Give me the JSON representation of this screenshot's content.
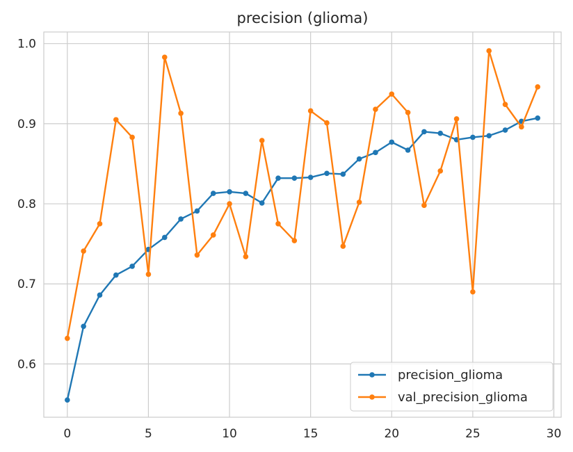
{
  "chart_data": {
    "type": "line",
    "title": "precision (glioma)",
    "xlabel": "",
    "ylabel": "",
    "xlim": [
      -1.45,
      30.45
    ],
    "ylim": [
      0.5335,
      1.0145
    ],
    "xticks": [
      0,
      5,
      10,
      15,
      20,
      25,
      30
    ],
    "yticks": [
      0.6,
      0.7,
      0.8,
      0.9,
      1.0
    ],
    "ytick_labels": [
      "0.6",
      "0.7",
      "0.8",
      "0.9",
      "1.0"
    ],
    "grid": true,
    "legend_position": "lower-right",
    "x": [
      0,
      1,
      2,
      3,
      4,
      5,
      6,
      7,
      8,
      9,
      10,
      11,
      12,
      13,
      14,
      15,
      16,
      17,
      18,
      19,
      20,
      21,
      22,
      23,
      24,
      25,
      26,
      27,
      28,
      29
    ],
    "series": [
      {
        "name": "precision_glioma",
        "color": "#1f77b4",
        "values": [
          0.555,
          0.647,
          0.686,
          0.711,
          0.722,
          0.743,
          0.758,
          0.781,
          0.791,
          0.813,
          0.815,
          0.813,
          0.801,
          0.832,
          0.832,
          0.833,
          0.838,
          0.837,
          0.856,
          0.864,
          0.877,
          0.867,
          0.89,
          0.888,
          0.88,
          0.883,
          0.885,
          0.892,
          0.903,
          0.907
        ]
      },
      {
        "name": "val_precision_glioma",
        "color": "#ff7f0e",
        "values": [
          0.632,
          0.741,
          0.775,
          0.905,
          0.883,
          0.712,
          0.983,
          0.913,
          0.736,
          0.761,
          0.8,
          0.734,
          0.879,
          0.775,
          0.754,
          0.916,
          0.901,
          0.747,
          0.802,
          0.918,
          0.937,
          0.914,
          0.798,
          0.841,
          0.906,
          0.69,
          0.991,
          0.924,
          0.896,
          0.946
        ]
      }
    ]
  }
}
